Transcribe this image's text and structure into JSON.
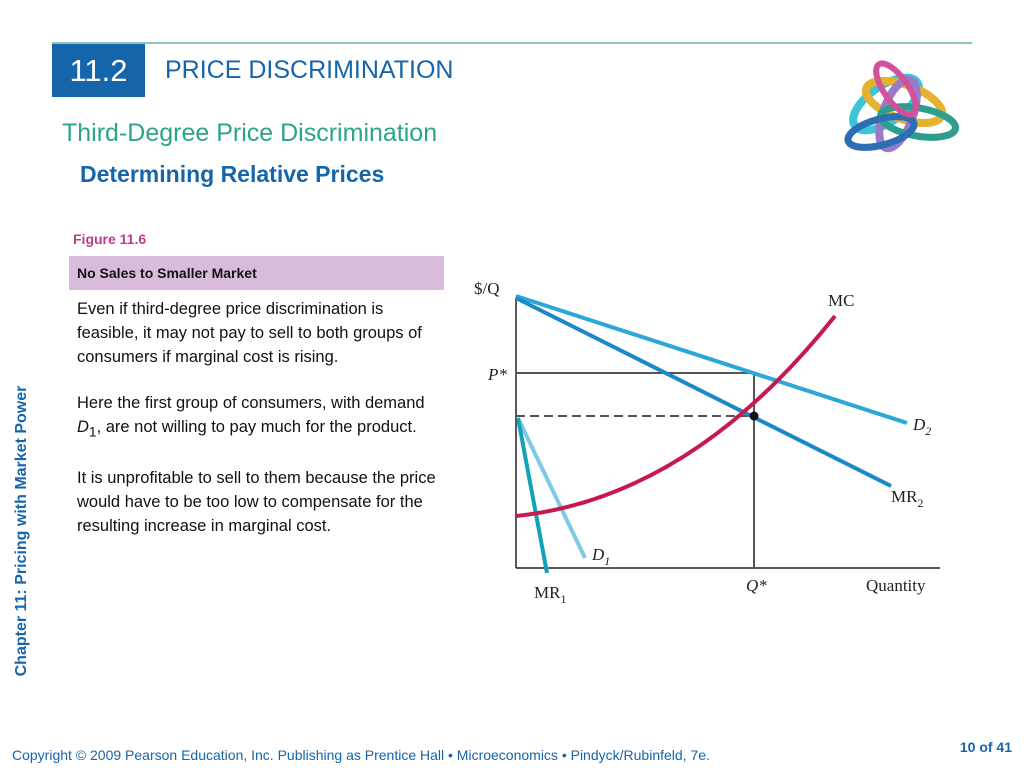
{
  "header": {
    "section_number": "11.2",
    "title": "PRICE DISCRIMINATION",
    "subtitle": "Third-Degree Price Discrimination",
    "subsubtitle": "Determining Relative Prices"
  },
  "figure": {
    "label": "Figure 11.6",
    "title": "No Sales to Smaller Market"
  },
  "body": {
    "p1": "Even if third-degree price discrimination is feasible, it may not pay to sell to both groups of consumers if marginal cost is rising.",
    "p2_before": "Here the first group of consumers, with demand ",
    "p2_var": "D",
    "p2_sub": "1",
    "p2_after": ", are not willing to pay much for the product.",
    "p3": "It is unprofitable to sell to them because the price would have to be too low to compensate for the resulting increase in marginal cost."
  },
  "sidebar": {
    "chapter_label": "Chapter 11: Pricing with Market Power"
  },
  "diagram": {
    "y_axis_label": "$/Q",
    "x_axis_label": "Quantity",
    "p_star": "P*",
    "q_star": "Q*",
    "curves": {
      "mc": "MC",
      "d2": {
        "base": "D",
        "sub": "2"
      },
      "mr2": {
        "base": "MR",
        "sub": "2"
      },
      "d1": {
        "base": "D",
        "sub": "1"
      },
      "mr1": {
        "base": "MR",
        "sub": "1"
      }
    },
    "colors": {
      "demand": "#2ba7d8",
      "marginal": "#1c87c9",
      "mc": "#c8194f",
      "guide": "#555555"
    }
  },
  "footer": {
    "copyright": "Copyright © 2009 Pearson Education, Inc. Publishing as Prentice Hall  •  Microeconomics  •  Pindyck/Rubinfeld, 7e.",
    "page": "10 of 41"
  }
}
